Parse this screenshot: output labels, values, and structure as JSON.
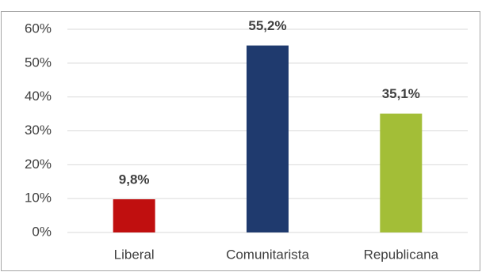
{
  "chart_data": {
    "type": "bar",
    "categories": [
      "Liberal",
      "Comunitarista",
      "Republicana"
    ],
    "values": [
      9.8,
      55.2,
      35.1
    ],
    "value_labels": [
      "9,8%",
      "55,2%",
      "35,1%"
    ],
    "colors": [
      "#c00f0f",
      "#1f3a6e",
      "#a3be37"
    ],
    "ylim": [
      0,
      60
    ],
    "yticks": [
      {
        "value": 0,
        "label": "0%"
      },
      {
        "value": 10,
        "label": "10%"
      },
      {
        "value": 20,
        "label": "20%"
      },
      {
        "value": 30,
        "label": "30%"
      },
      {
        "value": 40,
        "label": "40%"
      },
      {
        "value": 50,
        "label": "50%"
      },
      {
        "value": 60,
        "label": "60%"
      }
    ],
    "grid": true
  }
}
